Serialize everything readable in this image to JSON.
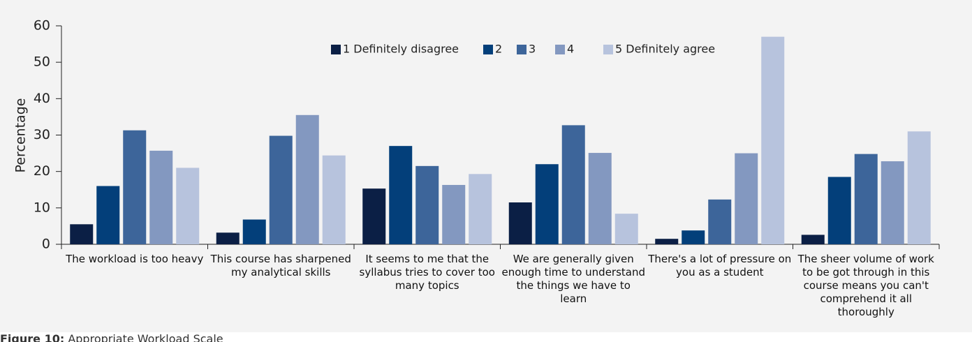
{
  "chart_data": {
    "type": "bar",
    "y_label": "Percentage",
    "categories": [
      "The workload is too heavy",
      "This course has sharpened my analytical skills",
      "It seems to me that the syllabus tries to cover too many topics",
      "We are generally given enough time to understand the things we have to learn",
      "There's a lot of pressure on you as a student",
      "The sheer volume of work to be got through in this course means you can't comprehend it all thoroughly"
    ],
    "series": [
      {
        "name": "1 Definitely disagree",
        "color": "#0b1f45",
        "values": [
          5.5,
          3.2,
          15.3,
          11.5,
          1.5,
          2.6
        ]
      },
      {
        "name": "2",
        "color": "#033f7a",
        "values": [
          16,
          6.8,
          27,
          22,
          3.8,
          18.5
        ]
      },
      {
        "name": "3",
        "color": "#3d659a",
        "values": [
          31.3,
          29.8,
          21.5,
          32.7,
          12.3,
          24.8
        ]
      },
      {
        "name": "4",
        "color": "#8398c0",
        "values": [
          25.7,
          35.5,
          16.3,
          25.1,
          25,
          22.8
        ]
      },
      {
        "name": "5 Definitely agree",
        "color": "#b7c3dd",
        "values": [
          21,
          24.4,
          19.3,
          8.4,
          57,
          31
        ]
      }
    ],
    "ylim": [
      0,
      60
    ],
    "yticks": [
      0,
      10,
      20,
      30,
      40,
      50,
      60
    ],
    "legend": "top"
  },
  "caption": {
    "label": "Figure 10:",
    "text": "Appropriate Workload Scale"
  }
}
